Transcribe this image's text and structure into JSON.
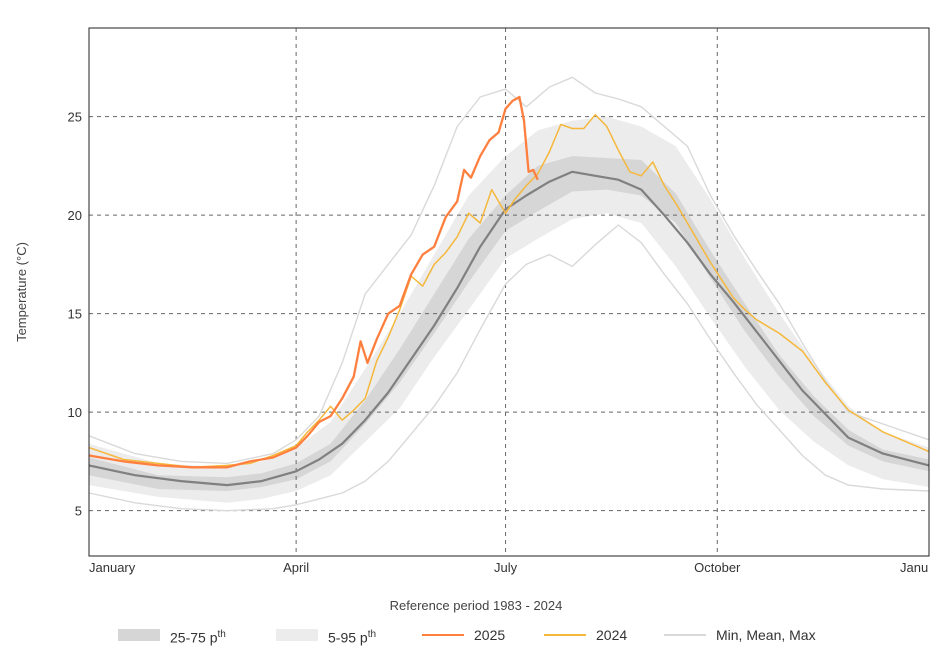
{
  "chart_data": {
    "type": "line",
    "xlabel": "Reference period 1983 - 2024",
    "ylabel": "Temperature (°C)",
    "x_ticks": [
      {
        "label": "January",
        "day": 0
      },
      {
        "label": "April",
        "day": 90
      },
      {
        "label": "July",
        "day": 181
      },
      {
        "label": "October",
        "day": 273
      },
      {
        "label": "Janu",
        "day": 365
      }
    ],
    "xlim_days": [
      0,
      365
    ],
    "ylim": [
      2.7,
      29.5
    ],
    "y_ticks": [
      5,
      10,
      15,
      20,
      25
    ],
    "grid": true,
    "legend": [
      {
        "label": "25-75 p",
        "sup": "th",
        "kind": "band",
        "color": "#d6d6d6"
      },
      {
        "label": "5-95 p",
        "sup": "th",
        "kind": "band",
        "color": "#ececec"
      },
      {
        "label": "2025",
        "kind": "line",
        "color": "#ff7f3f"
      },
      {
        "label": "2024",
        "kind": "line",
        "color": "#f5b83d"
      },
      {
        "label": "Min, Mean, Max",
        "kind": "line",
        "color": "#d9d9d9"
      }
    ],
    "bands": [
      {
        "name": "5-95 p",
        "color": "#ececec",
        "x": [
          0,
          30,
          60,
          75,
          90,
          105,
          120,
          135,
          150,
          165,
          181,
          195,
          210,
          225,
          240,
          255,
          270,
          285,
          300,
          315,
          330,
          345,
          365
        ],
        "lower": [
          6.3,
          5.7,
          5.4,
          5.6,
          6.0,
          6.8,
          8.5,
          10.2,
          12.8,
          15.2,
          17.8,
          18.8,
          19.8,
          20.1,
          19.6,
          17.4,
          14.8,
          12.3,
          10.1,
          8.5,
          7.3,
          6.6,
          6.2
        ],
        "upper": [
          8.4,
          7.4,
          7.2,
          7.5,
          8.2,
          9.5,
          12.2,
          15.0,
          18.0,
          21.0,
          23.0,
          24.3,
          24.8,
          25.0,
          24.5,
          23.5,
          20.8,
          17.8,
          15.0,
          12.5,
          10.3,
          9.0,
          8.2
        ]
      },
      {
        "name": "25-75 p",
        "color": "#d6d6d6",
        "x": [
          0,
          30,
          60,
          75,
          90,
          105,
          120,
          135,
          150,
          165,
          181,
          195,
          210,
          225,
          240,
          255,
          270,
          285,
          300,
          315,
          330,
          345,
          365
        ],
        "lower": [
          6.8,
          6.1,
          6.0,
          6.2,
          6.6,
          7.5,
          9.4,
          11.5,
          14.0,
          16.6,
          19.2,
          20.2,
          21.2,
          21.3,
          21.0,
          19.6,
          16.8,
          14.1,
          11.8,
          9.8,
          8.3,
          7.5,
          7.0
        ],
        "upper": [
          7.7,
          6.8,
          6.7,
          6.9,
          7.4,
          8.4,
          10.6,
          13.2,
          16.0,
          18.8,
          21.0,
          22.5,
          23.0,
          22.9,
          22.8,
          21.1,
          18.2,
          15.5,
          12.9,
          10.8,
          9.1,
          8.1,
          7.6
        ]
      }
    ],
    "series": [
      {
        "name": "Max",
        "color": "#d9d9d9",
        "width": 1.4,
        "x": [
          0,
          20,
          40,
          60,
          80,
          90,
          100,
          110,
          120,
          130,
          140,
          150,
          160,
          170,
          181,
          190,
          200,
          210,
          220,
          230,
          240,
          250,
          260,
          270,
          280,
          290,
          300,
          310,
          320,
          330,
          345,
          365
        ],
        "y": [
          8.8,
          7.9,
          7.5,
          7.4,
          7.9,
          8.6,
          9.8,
          12.5,
          16.0,
          17.5,
          19.0,
          21.5,
          24.5,
          26.0,
          26.4,
          25.5,
          26.5,
          27.0,
          26.2,
          25.9,
          25.5,
          24.5,
          23.5,
          21.0,
          19.0,
          17.2,
          15.5,
          13.5,
          11.6,
          10.0,
          9.4,
          8.6
        ]
      },
      {
        "name": "Min",
        "color": "#d9d9d9",
        "width": 1.4,
        "x": [
          0,
          20,
          40,
          60,
          80,
          90,
          100,
          110,
          120,
          130,
          140,
          150,
          160,
          170,
          181,
          190,
          200,
          210,
          220,
          230,
          240,
          250,
          260,
          270,
          280,
          290,
          300,
          310,
          320,
          330,
          345,
          365
        ],
        "y": [
          5.9,
          5.4,
          5.1,
          5.0,
          5.1,
          5.3,
          5.6,
          5.9,
          6.5,
          7.5,
          8.9,
          10.3,
          12.0,
          14.2,
          16.5,
          17.5,
          18.0,
          17.4,
          18.5,
          19.5,
          18.6,
          17.0,
          15.5,
          13.7,
          12.0,
          10.4,
          9.1,
          7.8,
          6.8,
          6.3,
          6.1,
          6.0
        ]
      },
      {
        "name": "Mean",
        "color": "#808080",
        "width": 2.2,
        "x": [
          0,
          20,
          40,
          60,
          75,
          90,
          100,
          110,
          120,
          130,
          140,
          150,
          160,
          170,
          181,
          190,
          200,
          210,
          220,
          230,
          240,
          250,
          260,
          270,
          280,
          290,
          300,
          310,
          320,
          330,
          345,
          365
        ],
        "y": [
          7.3,
          6.8,
          6.5,
          6.3,
          6.5,
          7.0,
          7.6,
          8.4,
          9.6,
          11.0,
          12.7,
          14.4,
          16.3,
          18.4,
          20.3,
          21.0,
          21.7,
          22.2,
          22.0,
          21.8,
          21.3,
          20.0,
          18.6,
          17.0,
          15.6,
          14.1,
          12.6,
          11.1,
          9.9,
          8.7,
          7.9,
          7.3
        ]
      },
      {
        "name": "2024",
        "color": "#f5b83d",
        "width": 1.5,
        "x": [
          0,
          15,
          30,
          45,
          60,
          70,
          80,
          90,
          95,
          100,
          105,
          110,
          115,
          120,
          125,
          130,
          135,
          140,
          145,
          150,
          155,
          160,
          165,
          170,
          175,
          181,
          185,
          190,
          195,
          200,
          205,
          210,
          215,
          220,
          225,
          230,
          235,
          240,
          245,
          250,
          255,
          260,
          265,
          270,
          275,
          280,
          285,
          290,
          300,
          310,
          320,
          330,
          345,
          365
        ],
        "y": [
          8.2,
          7.6,
          7.4,
          7.2,
          7.3,
          7.4,
          7.8,
          8.3,
          9.0,
          9.6,
          10.3,
          9.6,
          10.1,
          10.7,
          12.6,
          13.8,
          15.2,
          16.9,
          16.4,
          17.5,
          18.1,
          18.9,
          20.1,
          19.6,
          21.3,
          20.1,
          20.8,
          21.5,
          22.1,
          23.2,
          24.6,
          24.4,
          24.4,
          25.1,
          24.5,
          23.3,
          22.2,
          22.0,
          22.7,
          21.5,
          20.6,
          19.6,
          18.6,
          17.6,
          16.7,
          15.8,
          15.2,
          14.7,
          14.0,
          13.1,
          11.5,
          10.1,
          9.0,
          8.0
        ]
      },
      {
        "name": "2025",
        "color": "#ff7f3f",
        "width": 2.3,
        "x": [
          0,
          15,
          30,
          45,
          60,
          70,
          80,
          90,
          95,
          100,
          105,
          110,
          115,
          118,
          121,
          125,
          130,
          135,
          140,
          145,
          150,
          155,
          160,
          163,
          166,
          170,
          174,
          178,
          181,
          184,
          187,
          189,
          191,
          193,
          195
        ],
        "y": [
          7.8,
          7.5,
          7.3,
          7.2,
          7.2,
          7.5,
          7.7,
          8.2,
          8.8,
          9.5,
          9.8,
          10.7,
          11.8,
          13.6,
          12.5,
          13.7,
          15.0,
          15.4,
          17.0,
          18.0,
          18.4,
          19.9,
          20.7,
          22.3,
          21.9,
          23.0,
          23.8,
          24.2,
          25.4,
          25.8,
          26.0,
          24.8,
          22.2,
          22.3,
          21.8
        ]
      }
    ]
  }
}
